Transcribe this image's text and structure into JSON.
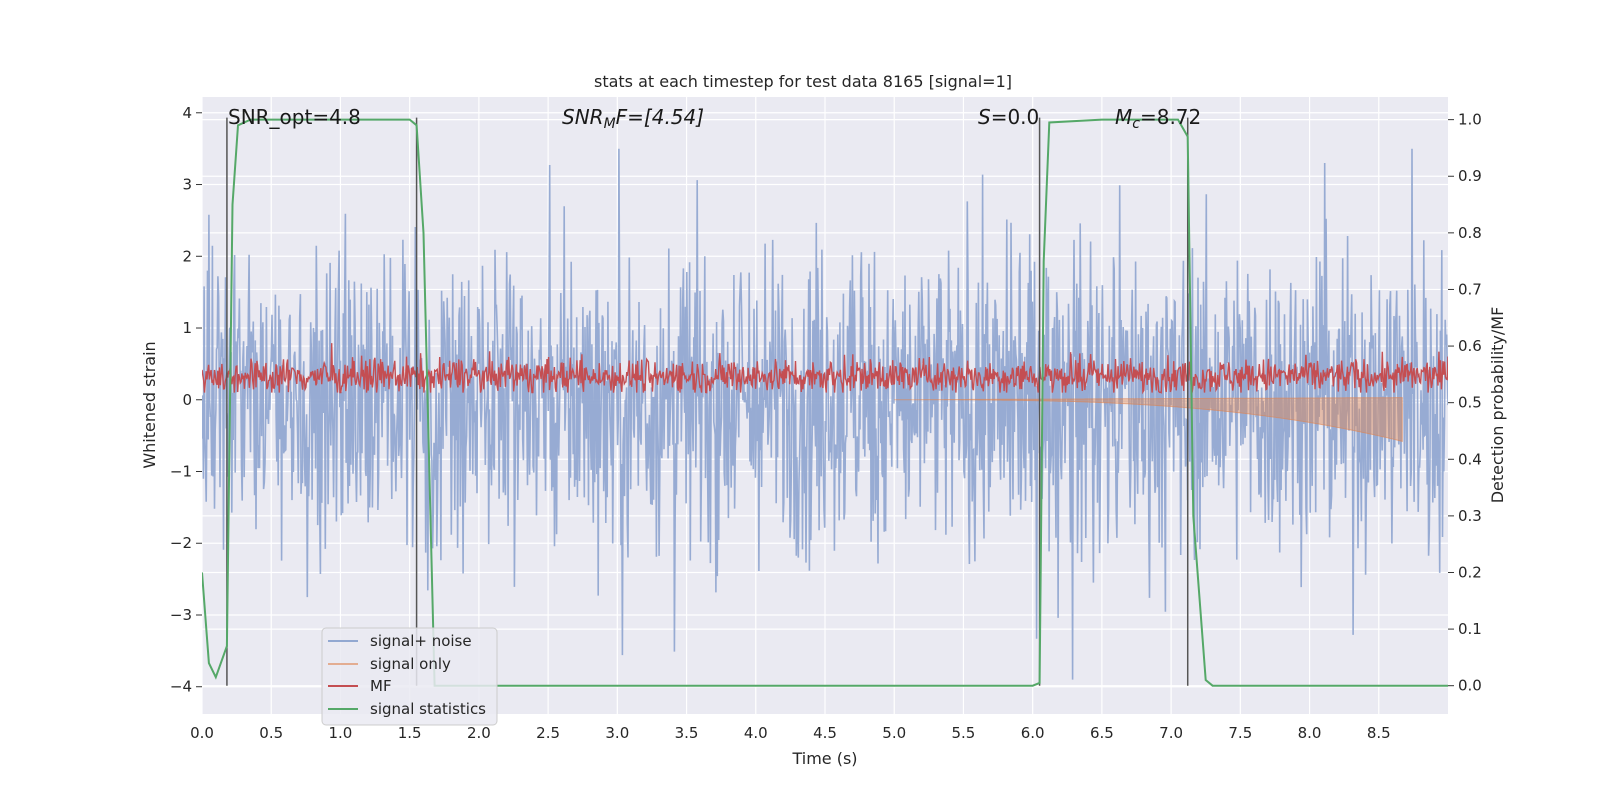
{
  "chart_data": {
    "type": "line",
    "title": "stats at each timestep for test data 8165 [signal=1]",
    "xlabel": "Time (s)",
    "ylabel_left": "Whitened strain",
    "ylabel_right": "Detection probability/MF",
    "xlim": [
      0,
      9.0
    ],
    "ylim_left": [
      -4.38,
      4.22
    ],
    "ylim_right": [
      -0.05,
      1.04
    ],
    "grid": true,
    "legend_placement": "lower-left",
    "x_ticks": [
      "0.0",
      "0.5",
      "1.0",
      "1.5",
      "2.0",
      "2.5",
      "3.0",
      "3.5",
      "4.0",
      "4.5",
      "5.0",
      "5.5",
      "6.0",
      "6.5",
      "7.0",
      "7.5",
      "8.0",
      "8.5"
    ],
    "y_ticks_left": [
      "−4",
      "−3",
      "−2",
      "−1",
      "0",
      "1",
      "2",
      "3",
      "4"
    ],
    "y_ticks_right": [
      "0.0",
      "0.1",
      "0.2",
      "0.3",
      "0.4",
      "0.5",
      "0.6",
      "0.7",
      "0.8",
      "0.9",
      "1.0"
    ],
    "annotations": {
      "snr_opt": "SNR_opt=4.8",
      "snr_mf_main": "SNR",
      "snr_mf_sub": "M",
      "snr_mf_rest": "F=[4.54]",
      "s_main": "S",
      "s_rest": "=0.0",
      "mc_main": "M",
      "mc_sub": "c",
      "mc_rest": "=8.72"
    },
    "vertical_lines": [
      0.18,
      1.55,
      6.05,
      7.12
    ],
    "series": [
      {
        "name": "signal+ noise",
        "color": "#92a8d1",
        "axis": "left",
        "kind": "noise",
        "range_approx": [
          -3.9,
          3.5
        ]
      },
      {
        "name": "signal only",
        "color": "#dd8452",
        "axis": "left",
        "kind": "chirp",
        "start": 5.0,
        "end": 8.67,
        "min_at_end": -0.58
      },
      {
        "name": "MF",
        "color": "#c44e52",
        "axis": "left",
        "kind": "noise",
        "range_approx": [
          0.1,
          0.7
        ]
      },
      {
        "name": "signal statistics",
        "color": "#55a868",
        "axis": "right",
        "x": [
          0.0,
          0.05,
          0.1,
          0.18,
          0.22,
          0.26,
          0.35,
          0.5,
          1.0,
          1.5,
          1.55,
          1.6,
          1.68,
          2.0,
          3.0,
          4.0,
          5.0,
          5.5,
          6.0,
          6.05,
          6.08,
          6.12,
          6.5,
          7.0,
          7.05,
          7.12,
          7.16,
          7.25,
          7.3,
          7.5,
          8.0,
          8.5,
          9.0
        ],
        "y": [
          0.2,
          0.04,
          0.015,
          0.07,
          0.85,
          0.99,
          1.0,
          1.0,
          1.0,
          1.0,
          0.99,
          0.8,
          0.0,
          0.0,
          0.0,
          0.0,
          0.0,
          0.0,
          0.0,
          0.005,
          0.75,
          0.995,
          1.0,
          1.0,
          1.0,
          0.97,
          0.3,
          0.01,
          0.0,
          0.0,
          0.0,
          0.0,
          0.0
        ]
      }
    ],
    "legend_labels": [
      "signal+ noise",
      "signal only",
      "MF",
      "signal statistics"
    ]
  }
}
